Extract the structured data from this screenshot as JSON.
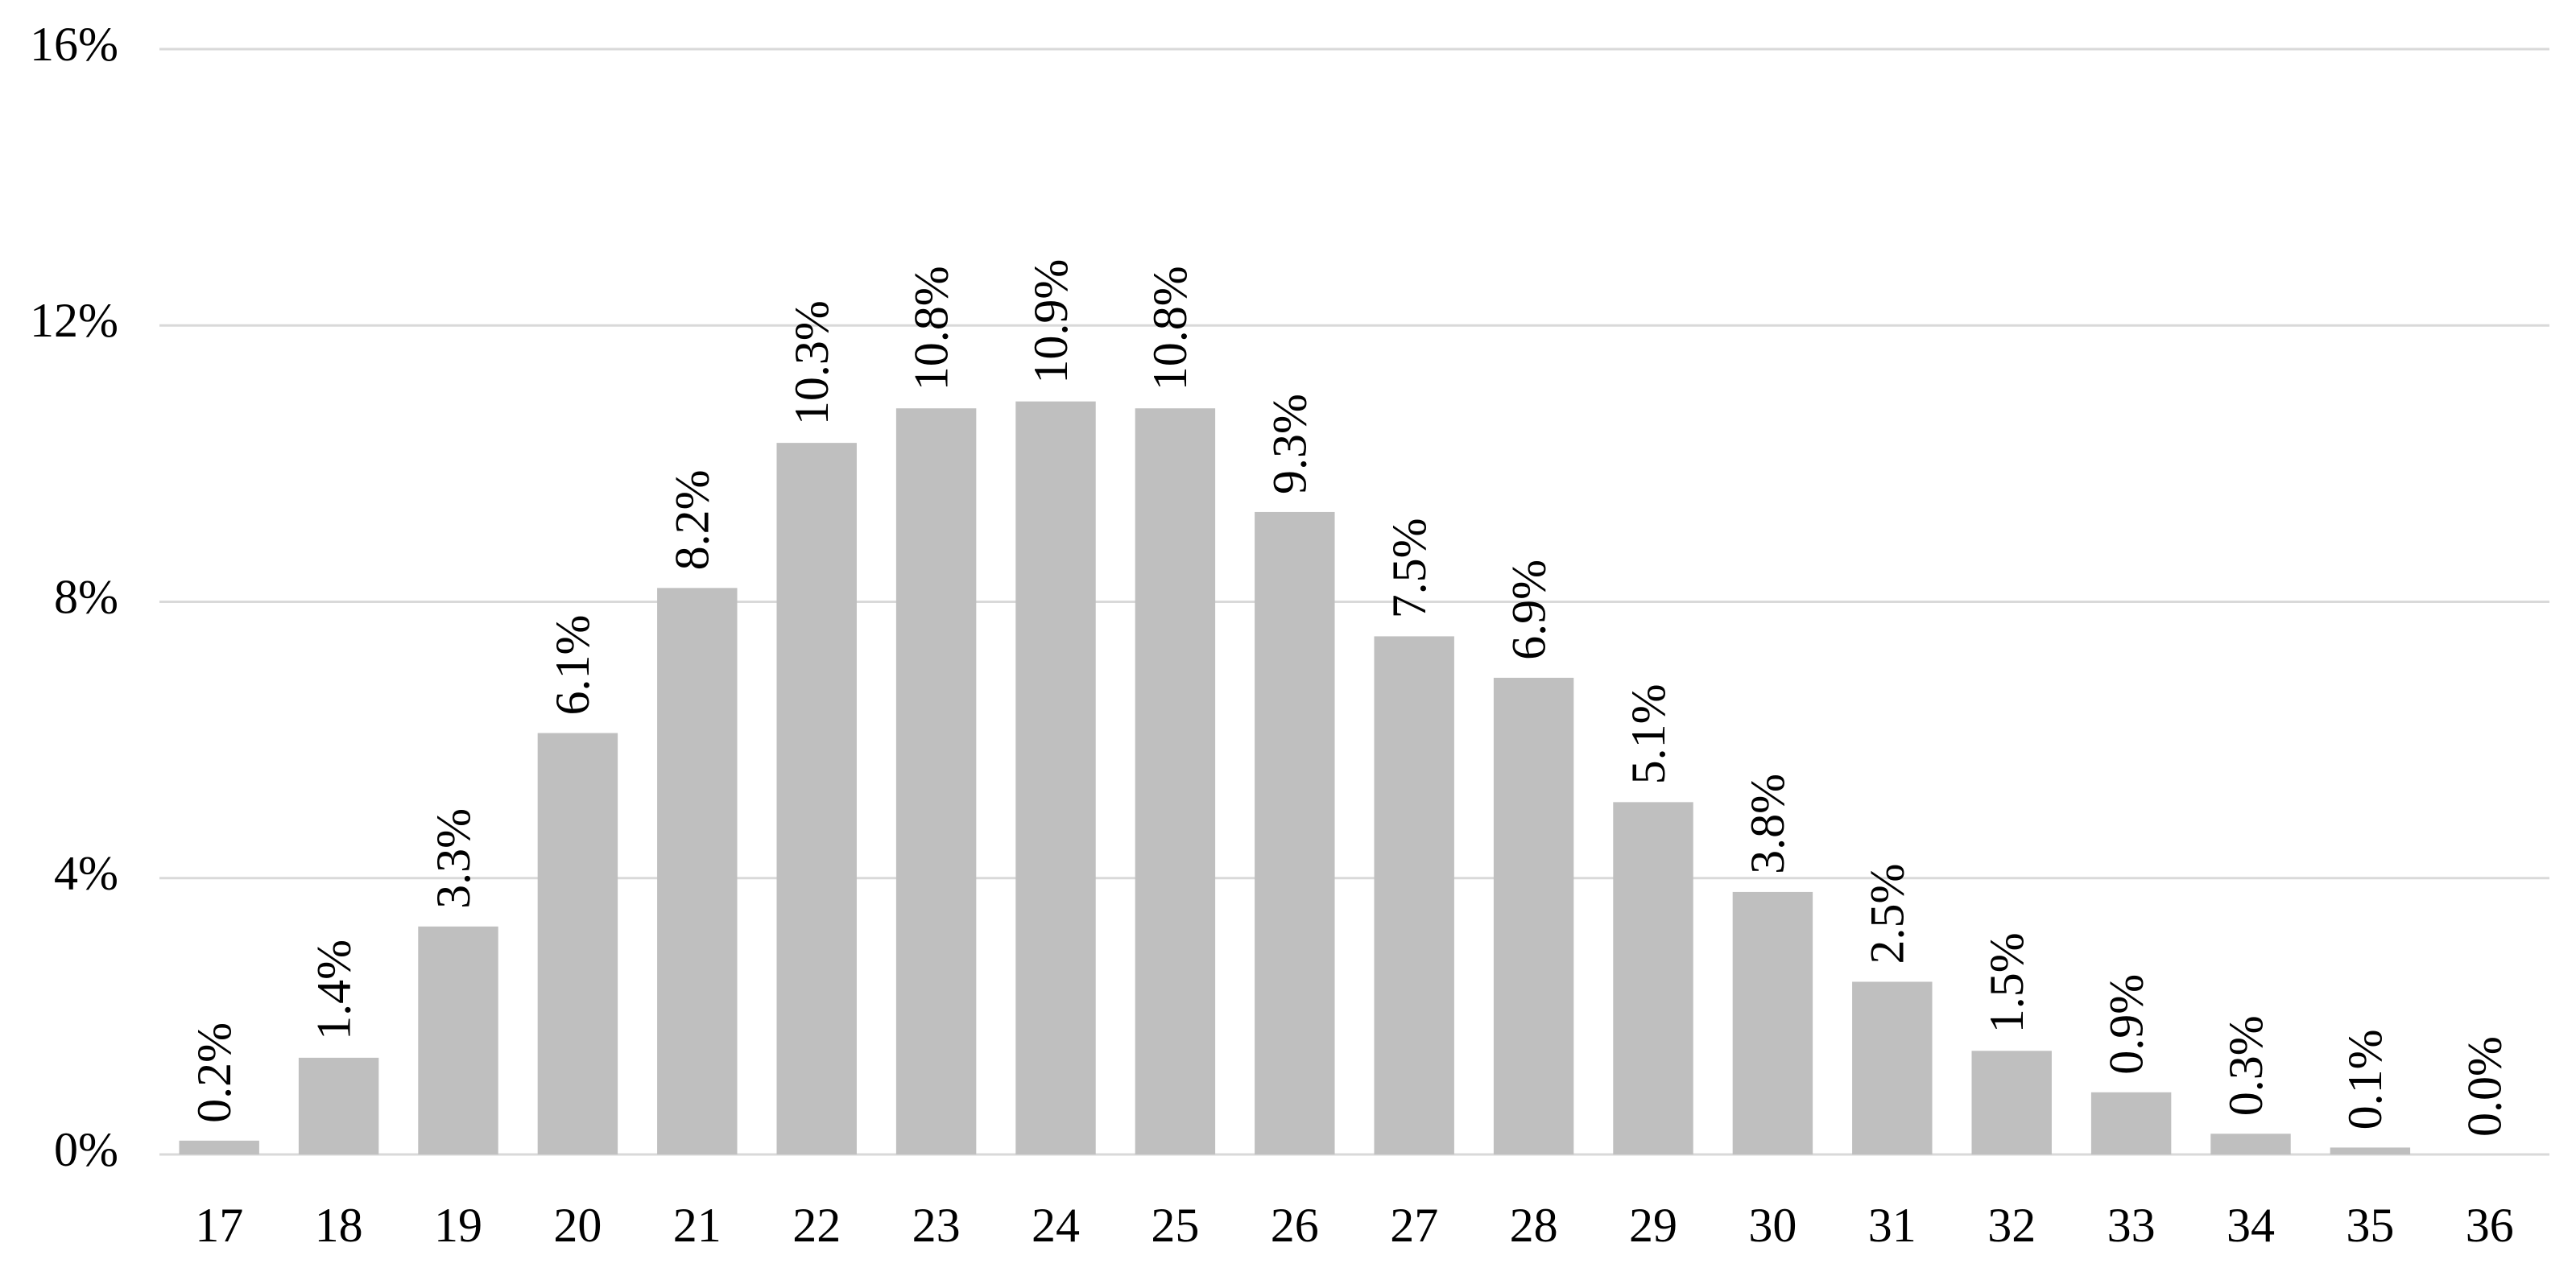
{
  "chart_data": {
    "type": "bar",
    "categories": [
      "17",
      "18",
      "19",
      "20",
      "21",
      "22",
      "23",
      "24",
      "25",
      "26",
      "27",
      "28",
      "29",
      "30",
      "31",
      "32",
      "33",
      "34",
      "35",
      "36"
    ],
    "values": [
      0.2,
      1.4,
      3.3,
      6.1,
      8.2,
      10.3,
      10.8,
      10.9,
      10.8,
      9.3,
      7.5,
      6.9,
      5.1,
      3.8,
      2.5,
      1.5,
      0.9,
      0.3,
      0.1,
      0.0
    ],
    "value_labels": [
      "0.2%",
      "1.4%",
      "3.3%",
      "6.1%",
      "8.2%",
      "10.3%",
      "10.8%",
      "10.9%",
      "10.8%",
      "9.3%",
      "7.5%",
      "6.9%",
      "5.1%",
      "3.8%",
      "2.5%",
      "1.5%",
      "0.9%",
      "0.3%",
      "0.1%",
      "0.0%"
    ],
    "color": "#bfbfbf",
    "ylim": [
      0,
      16
    ],
    "yticks": [
      {
        "value": 0,
        "label": "0%"
      },
      {
        "value": 4,
        "label": "4%"
      },
      {
        "value": 8,
        "label": "8%"
      },
      {
        "value": 12,
        "label": "12%"
      },
      {
        "value": 16,
        "label": "16%"
      }
    ],
    "grid": true
  }
}
